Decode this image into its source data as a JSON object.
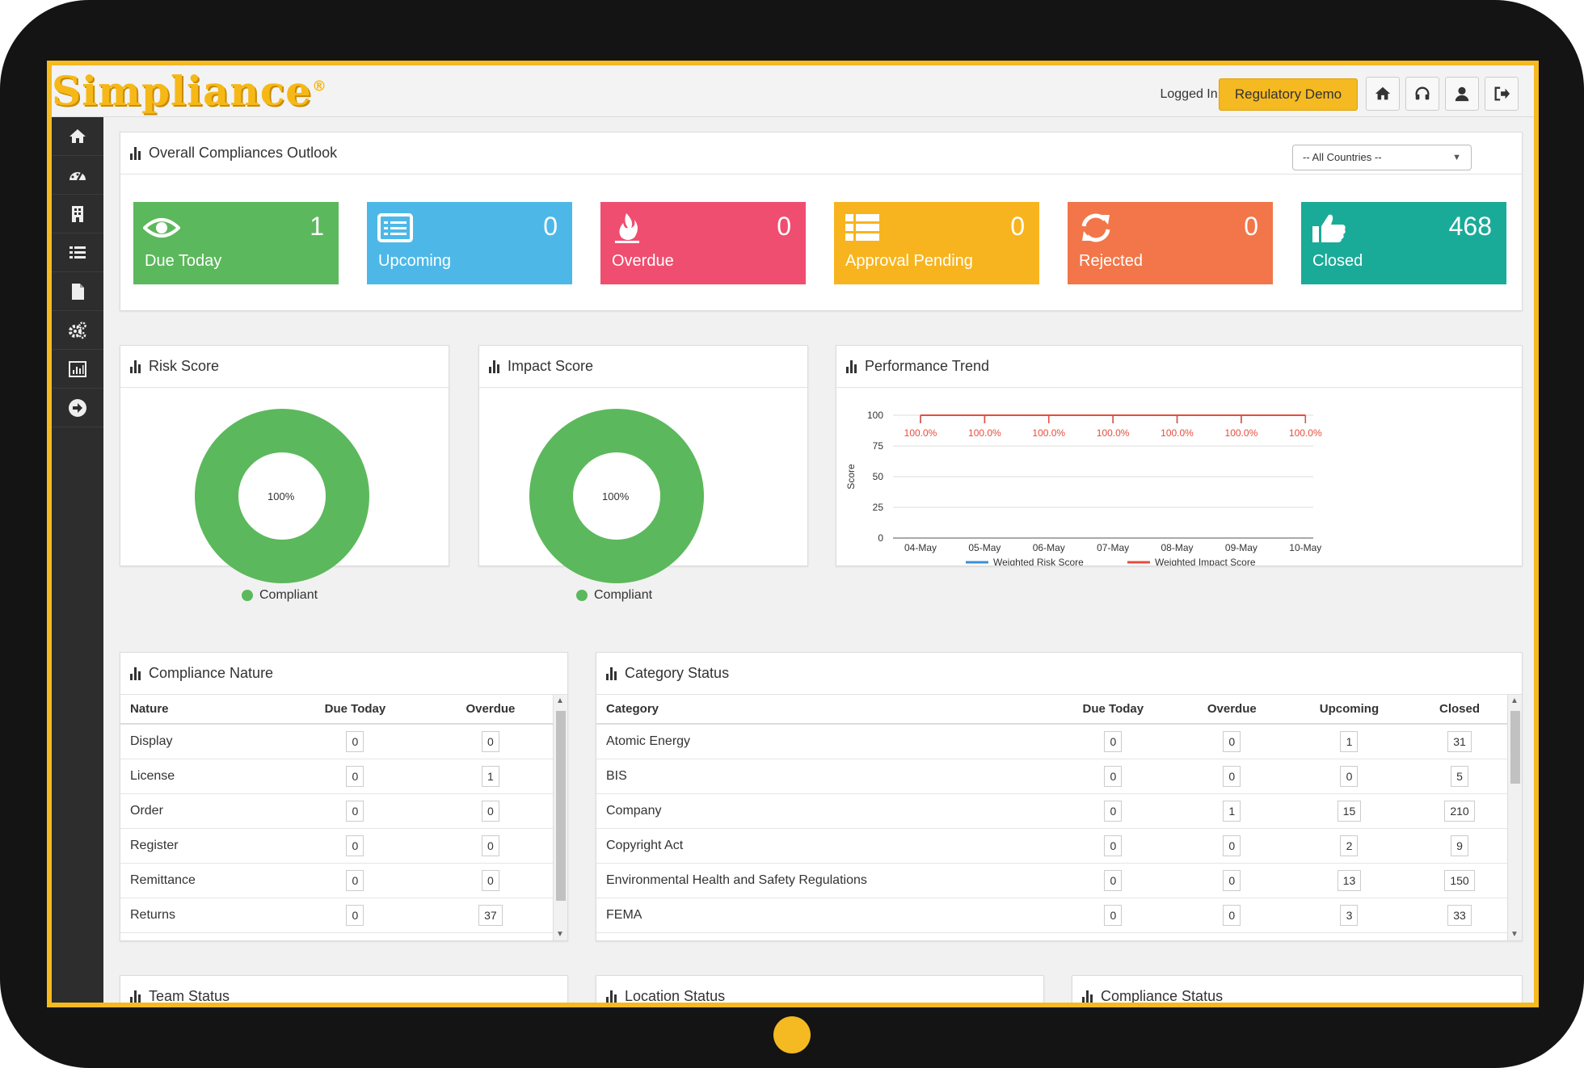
{
  "header": {
    "logo_text": "Simpliance",
    "logo_mark": "®",
    "logged_in_label": "Logged In as",
    "user_name": "Regulatory Demo",
    "icons": [
      "home-icon",
      "headset-icon",
      "user-icon",
      "logout-icon"
    ]
  },
  "sidebar": {
    "icons": [
      "home-icon",
      "dashboard-icon",
      "building-icon",
      "list-icon",
      "file-icon",
      "gears-icon",
      "report-icon",
      "arrow-right-circle-icon"
    ]
  },
  "outlook": {
    "title": "Overall Compliances Outlook",
    "country_select": "-- All Countries --",
    "tiles": [
      {
        "label": "Due Today",
        "count": "1",
        "color": "#5cb85c",
        "icon": "eye-icon"
      },
      {
        "label": "Upcoming",
        "count": "0",
        "color": "#4db8e8",
        "icon": "list-alt-icon"
      },
      {
        "label": "Overdue",
        "count": "0",
        "color": "#ef4e70",
        "icon": "fire-icon"
      },
      {
        "label": "Approval Pending",
        "count": "0",
        "color": "#f8b41e",
        "icon": "th-list-icon"
      },
      {
        "label": "Rejected",
        "count": "0",
        "color": "#f27649",
        "icon": "refresh-icon"
      },
      {
        "label": "Closed",
        "count": "468",
        "color": "#1aab98",
        "icon": "thumbs-up-icon"
      }
    ]
  },
  "risk_score": {
    "title": "Risk Score",
    "center": "100%",
    "legend": "Compliant",
    "color": "#5cb85c"
  },
  "impact_score": {
    "title": "Impact Score",
    "center": "100%",
    "legend": "Compliant",
    "color": "#5cb85c"
  },
  "chart_data": {
    "type": "line",
    "title": "Performance Trend",
    "xlabel": "",
    "ylabel": "Score",
    "categories": [
      "04-May",
      "05-May",
      "06-May",
      "07-May",
      "08-May",
      "09-May",
      "10-May"
    ],
    "ylim": [
      0,
      100
    ],
    "yticks": [
      0,
      25,
      50,
      75,
      100
    ],
    "series": [
      {
        "name": "Weighted Risk Score",
        "color": "#3a8fd6",
        "values": [
          100,
          100,
          100,
          100,
          100,
          100,
          100
        ]
      },
      {
        "name": "Weighted Impact Score",
        "color": "#e74c3c",
        "values": [
          100,
          100,
          100,
          100,
          100,
          100,
          100
        ],
        "labels": [
          "100.0%",
          "100.0%",
          "100.0%",
          "100.0%",
          "100.0%",
          "100.0%",
          "100.0%"
        ]
      }
    ]
  },
  "compliance_nature": {
    "title": "Compliance Nature",
    "columns": [
      "Nature",
      "Due Today",
      "Overdue"
    ],
    "rows": [
      [
        "Display",
        "0",
        "0"
      ],
      [
        "License",
        "0",
        "1"
      ],
      [
        "Order",
        "0",
        "0"
      ],
      [
        "Register",
        "0",
        "0"
      ],
      [
        "Remittance",
        "0",
        "0"
      ],
      [
        "Returns",
        "0",
        "37"
      ]
    ]
  },
  "category_status": {
    "title": "Category Status",
    "columns": [
      "Category",
      "Due Today",
      "Overdue",
      "Upcoming",
      "Closed"
    ],
    "rows": [
      [
        "Atomic Energy",
        "0",
        "0",
        "1",
        "31"
      ],
      [
        "BIS",
        "0",
        "0",
        "0",
        "5"
      ],
      [
        "Company",
        "0",
        "1",
        "15",
        "210"
      ],
      [
        "Copyright Act",
        "0",
        "0",
        "2",
        "9"
      ],
      [
        "Environmental Health and Safety Regulations",
        "0",
        "0",
        "13",
        "150"
      ],
      [
        "FEMA",
        "0",
        "0",
        "3",
        "33"
      ]
    ]
  },
  "bottom_panels": {
    "team_status": "Team Status",
    "location_status": "Location Status",
    "compliance_status": "Compliance Status"
  }
}
